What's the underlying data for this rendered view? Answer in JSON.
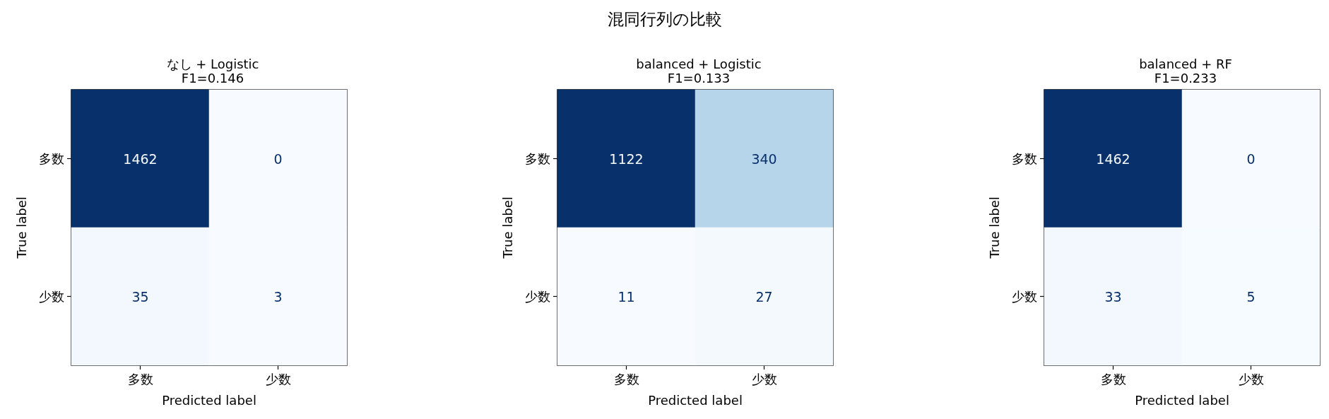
{
  "chart_data": [
    {
      "type": "other",
      "title": "混同行列の比較"
    },
    {
      "type": "heatmap",
      "title": "なし + Logistic",
      "subtitle": "F1=0.146",
      "xlabel": "Predicted label",
      "ylabel": "True label",
      "categories": [
        "多数",
        "少数"
      ],
      "y_categories": [
        "多数",
        "少数"
      ],
      "cells": [
        [
          1462,
          0
        ],
        [
          35,
          3
        ]
      ],
      "data_labels": true
    },
    {
      "type": "heatmap",
      "title": "balanced + Logistic",
      "subtitle": "F1=0.133",
      "xlabel": "Predicted label",
      "ylabel": "True label",
      "categories": [
        "多数",
        "少数"
      ],
      "y_categories": [
        "多数",
        "少数"
      ],
      "cells": [
        [
          1122,
          340
        ],
        [
          11,
          27
        ]
      ],
      "data_labels": true
    },
    {
      "type": "heatmap",
      "title": "balanced + RF",
      "subtitle": "F1=0.233",
      "xlabel": "Predicted label",
      "ylabel": "True label",
      "categories": [
        "多数",
        "少数"
      ],
      "y_categories": [
        "多数",
        "少数"
      ],
      "cells": [
        [
          1462,
          0
        ],
        [
          33,
          5
        ]
      ],
      "data_labels": true
    }
  ]
}
